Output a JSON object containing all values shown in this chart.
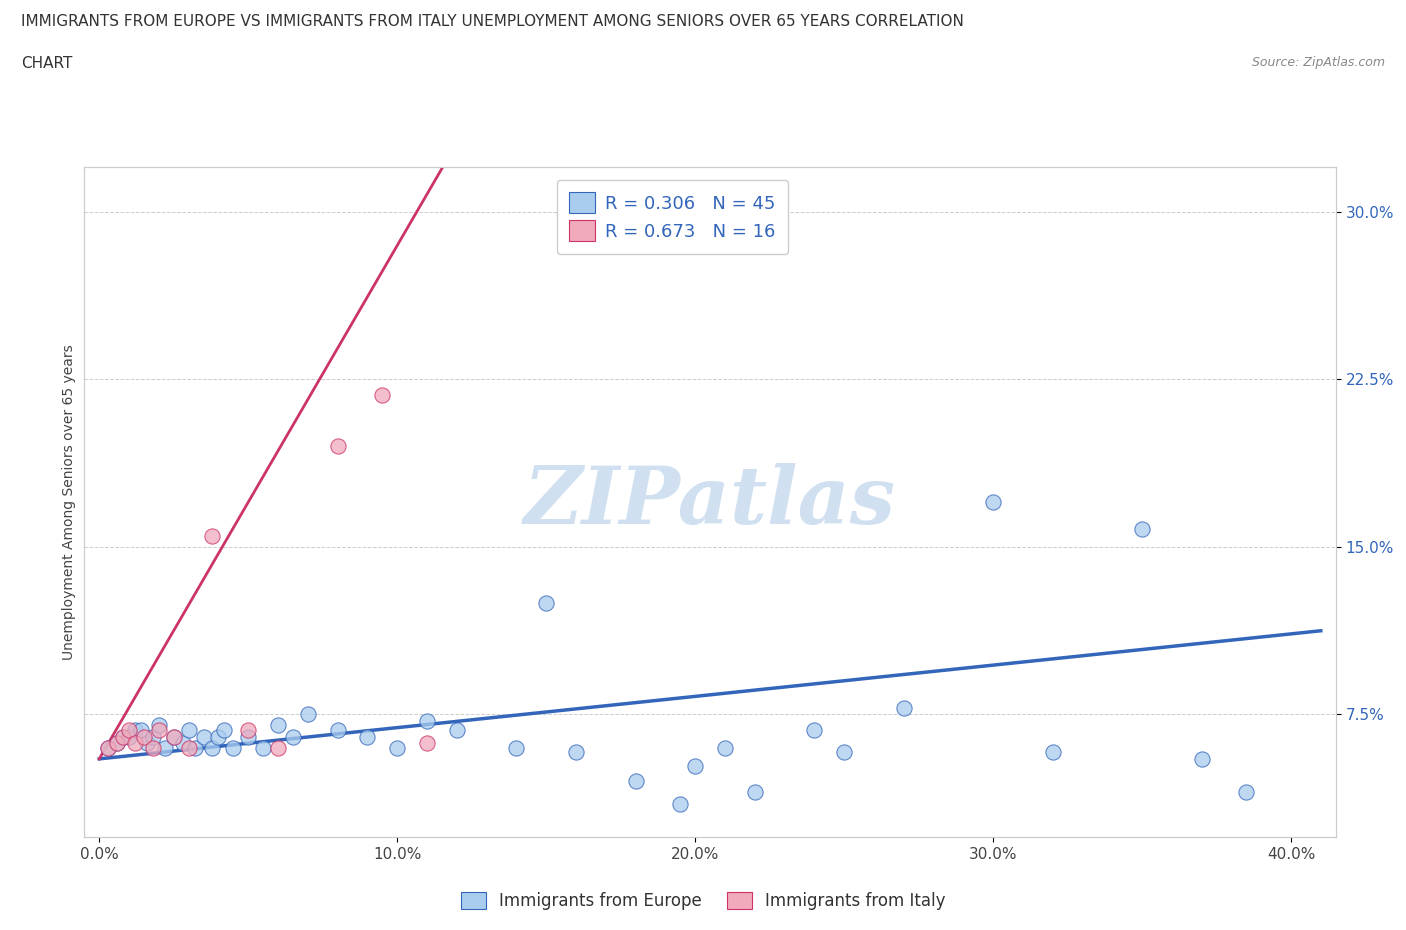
{
  "title_line1": "IMMIGRANTS FROM EUROPE VS IMMIGRANTS FROM ITALY UNEMPLOYMENT AMONG SENIORS OVER 65 YEARS CORRELATION",
  "title_line2": "CHART",
  "source": "Source: ZipAtlas.com",
  "xlabel_tick_vals": [
    0.0,
    0.1,
    0.2,
    0.3,
    0.4
  ],
  "ylabel_tick_vals": [
    0.075,
    0.15,
    0.225,
    0.3
  ],
  "ylabel_label": "Unemployment Among Seniors over 65 years",
  "xlim": [
    -0.005,
    0.415
  ],
  "ylim": [
    0.02,
    0.32
  ],
  "europe_scatter_x": [
    0.003,
    0.006,
    0.008,
    0.01,
    0.012,
    0.014,
    0.016,
    0.018,
    0.02,
    0.022,
    0.025,
    0.028,
    0.03,
    0.032,
    0.035,
    0.038,
    0.04,
    0.042,
    0.045,
    0.05,
    0.055,
    0.06,
    0.065,
    0.07,
    0.08,
    0.09,
    0.1,
    0.11,
    0.12,
    0.14,
    0.15,
    0.16,
    0.18,
    0.195,
    0.2,
    0.21,
    0.22,
    0.24,
    0.25,
    0.27,
    0.3,
    0.32,
    0.35,
    0.37,
    0.385
  ],
  "europe_scatter_y": [
    0.06,
    0.062,
    0.065,
    0.065,
    0.068,
    0.068,
    0.062,
    0.065,
    0.07,
    0.06,
    0.065,
    0.062,
    0.068,
    0.06,
    0.065,
    0.06,
    0.065,
    0.068,
    0.06,
    0.065,
    0.06,
    0.07,
    0.065,
    0.075,
    0.068,
    0.065,
    0.06,
    0.072,
    0.068,
    0.06,
    0.125,
    0.058,
    0.045,
    0.035,
    0.052,
    0.06,
    0.04,
    0.068,
    0.058,
    0.078,
    0.17,
    0.058,
    0.158,
    0.055,
    0.04
  ],
  "italy_scatter_x": [
    0.003,
    0.006,
    0.008,
    0.01,
    0.012,
    0.015,
    0.018,
    0.02,
    0.025,
    0.03,
    0.038,
    0.05,
    0.06,
    0.08,
    0.095,
    0.11
  ],
  "italy_scatter_y": [
    0.06,
    0.062,
    0.065,
    0.068,
    0.062,
    0.065,
    0.06,
    0.068,
    0.065,
    0.06,
    0.155,
    0.068,
    0.06,
    0.195,
    0.218,
    0.062
  ],
  "europe_R": 0.306,
  "europe_N": 45,
  "italy_R": 0.673,
  "italy_N": 16,
  "europe_color": "#aaccee",
  "italy_color": "#f0aabb",
  "europe_line_color": "#3366bb",
  "italy_line_color": "#cc3366",
  "italy_line_color_solid": "#dd3377",
  "watermark_text": "ZIPatlas",
  "watermark_color": "#ccddf0",
  "background_color": "#ffffff",
  "title_fontsize": 11,
  "axis_label_fontsize": 10,
  "tick_fontsize": 11,
  "legend_R_color": "#3366bb",
  "legend_N_color": "#3366bb"
}
